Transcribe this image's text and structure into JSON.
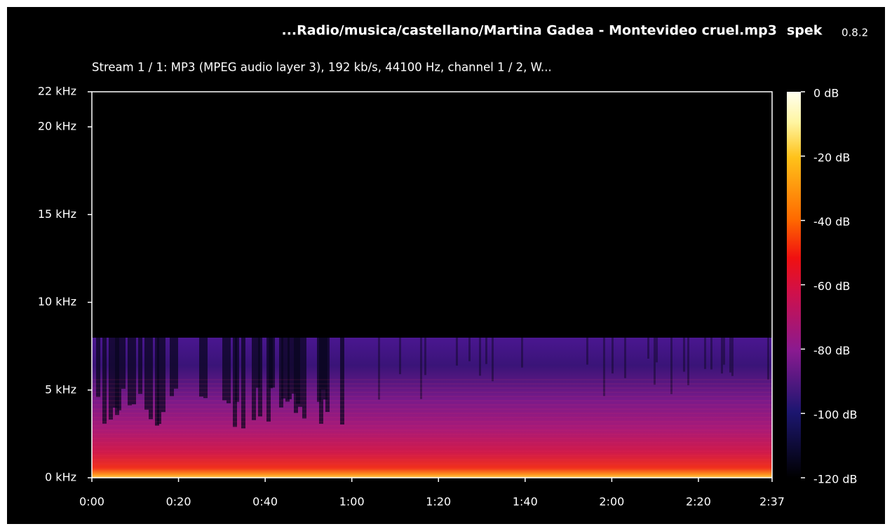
{
  "chart_data": {
    "type": "spectrogram",
    "title": "...Radio/musica/castellano/Martina Gadea - Montevideo cruel.mp3",
    "app_name": "spek",
    "version": "0.8.2",
    "subtitle": "Stream 1 / 1: MP3 (MPEG audio layer 3), 192 kb/s, 44100 Hz, channel 1 / 2, W...",
    "xlim": [
      0,
      157
    ],
    "xticks": [
      {
        "value": 0,
        "label": "0:00"
      },
      {
        "value": 20,
        "label": "0:20"
      },
      {
        "value": 40,
        "label": "0:40"
      },
      {
        "value": 60,
        "label": "1:00"
      },
      {
        "value": 80,
        "label": "1:20"
      },
      {
        "value": 100,
        "label": "1:40"
      },
      {
        "value": 120,
        "label": "2:00"
      },
      {
        "value": 140,
        "label": "2:20"
      },
      {
        "value": 157,
        "label": "2:37"
      }
    ],
    "ylim": [
      0,
      22
    ],
    "yticks": [
      {
        "value": 0,
        "label": "0 kHz"
      },
      {
        "value": 5,
        "label": "5 kHz"
      },
      {
        "value": 10,
        "label": "10 kHz"
      },
      {
        "value": 15,
        "label": "15 kHz"
      },
      {
        "value": 20,
        "label": "20 kHz"
      },
      {
        "value": 22,
        "label": "22 kHz"
      }
    ],
    "y2lim": [
      -120,
      0
    ],
    "y2ticks": [
      {
        "value": 0,
        "label": "0 dB"
      },
      {
        "value": -20,
        "label": "-20 dB"
      },
      {
        "value": -40,
        "label": "-40 dB"
      },
      {
        "value": -60,
        "label": "-60 dB"
      },
      {
        "value": -80,
        "label": "-80 dB"
      },
      {
        "value": -100,
        "label": "-100 dB"
      },
      {
        "value": -120,
        "label": "-120 dB"
      }
    ]
  }
}
